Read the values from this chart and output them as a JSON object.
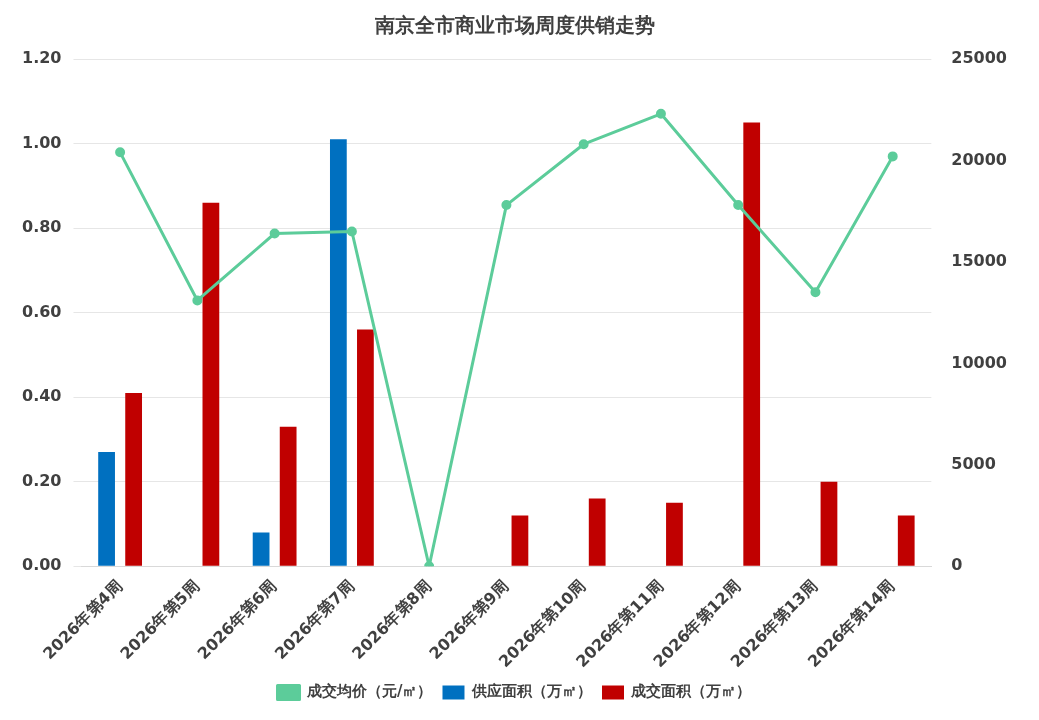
{
  "chart_data": {
    "type": "bar",
    "title": "南京全市商业市场周度供销走势",
    "categories": [
      "2026年第4周",
      "2026年第5周",
      "2026年第6周",
      "2026年第7周",
      "2026年第8周",
      "2026年第9周",
      "2026年第10周",
      "2026年第11周",
      "2026年第12周",
      "2026年第13周",
      "2026年第14周"
    ],
    "series": [
      {
        "name": "供应面积（万㎡）",
        "color": "#0070c0",
        "values": [
          0.27,
          0,
          0.08,
          1.01,
          0,
          0,
          0,
          0,
          0,
          0,
          0
        ]
      },
      {
        "name": "成交面积（万㎡）",
        "color": "#c00000",
        "values": [
          0.41,
          0.86,
          0.33,
          0.56,
          0,
          0.12,
          0.16,
          0.15,
          1.05,
          0.2,
          0.12
        ]
      },
      {
        "name": "成交均价（元/㎡）",
        "color": "#5ccc9a",
        "type": "line",
        "axis": "y2",
        "marker": "circle",
        "values": [
          20400,
          13100,
          16400,
          16500,
          0,
          17800,
          20800,
          22300,
          17800,
          13500,
          20200
        ]
      }
    ],
    "ylim": [
      0,
      1.2
    ],
    "yticks": [
      {
        "value": 0,
        "label": "0.00"
      },
      {
        "value": 0.2,
        "label": "0.20"
      },
      {
        "value": 0.4,
        "label": "0.40"
      },
      {
        "value": 0.6,
        "label": "0.60"
      },
      {
        "value": 0.8,
        "label": "0.80"
      },
      {
        "value": 1,
        "label": "1.00"
      },
      {
        "value": 1.2,
        "label": "1.20"
      }
    ],
    "y2lim": [
      0,
      25000
    ],
    "y2ticks": [
      0,
      5000,
      10000,
      15000,
      20000,
      25000
    ],
    "grid": "y",
    "legend": "bottom"
  }
}
